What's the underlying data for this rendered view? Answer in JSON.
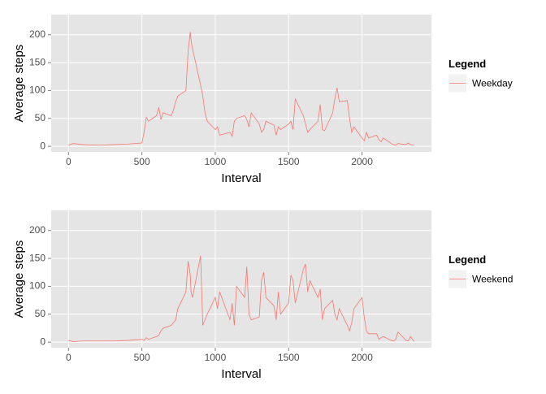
{
  "chart_data": [
    {
      "type": "line",
      "x_label": "Interval",
      "y_label": "Average steps",
      "legend_title": "Legend",
      "legend": "right",
      "grid": true,
      "xlim": [
        -118,
        2473
      ],
      "ylim": [
        -10,
        236
      ],
      "xticks": [
        0,
        500,
        1000,
        1500,
        2000
      ],
      "yticks": [
        0,
        50,
        100,
        150,
        200
      ],
      "x": [
        0,
        30,
        100,
        200,
        300,
        400,
        500,
        515,
        530,
        545,
        600,
        615,
        630,
        645,
        700,
        715,
        730,
        745,
        800,
        815,
        830,
        835,
        845,
        900,
        915,
        930,
        945,
        1000,
        1015,
        1030,
        1100,
        1115,
        1130,
        1145,
        1200,
        1215,
        1230,
        1245,
        1300,
        1315,
        1330,
        1345,
        1400,
        1415,
        1430,
        1445,
        1500,
        1515,
        1530,
        1545,
        1600,
        1615,
        1630,
        1645,
        1700,
        1715,
        1730,
        1745,
        1800,
        1815,
        1830,
        1845,
        1900,
        1915,
        1930,
        1945,
        2000,
        2015,
        2030,
        2045,
        2100,
        2115,
        2130,
        2145,
        2200,
        2215,
        2230,
        2245,
        2300,
        2315,
        2330,
        2355
      ],
      "series": [
        {
          "name": "Weekday",
          "color": "#f8766d",
          "values": [
            2,
            5,
            3,
            2,
            3,
            4,
            6,
            25,
            52,
            45,
            55,
            70,
            48,
            60,
            55,
            65,
            80,
            90,
            100,
            170,
            205,
            190,
            175,
            110,
            90,
            60,
            45,
            30,
            35,
            20,
            25,
            18,
            45,
            50,
            55,
            48,
            35,
            60,
            40,
            25,
            30,
            45,
            38,
            20,
            35,
            30,
            40,
            45,
            30,
            85,
            55,
            40,
            25,
            30,
            45,
            75,
            30,
            28,
            60,
            85,
            105,
            80,
            82,
            50,
            25,
            35,
            15,
            10,
            25,
            15,
            20,
            12,
            8,
            15,
            5,
            3,
            2,
            5,
            3,
            6,
            3,
            2
          ]
        }
      ]
    },
    {
      "type": "line",
      "x_label": "Interval",
      "y_label": "Average steps",
      "legend_title": "Legend",
      "legend": "right",
      "grid": true,
      "xlim": [
        -118,
        2473
      ],
      "ylim": [
        -10,
        236
      ],
      "xticks": [
        0,
        500,
        1000,
        1500,
        2000
      ],
      "yticks": [
        0,
        50,
        100,
        150,
        200
      ],
      "x": [
        0,
        30,
        100,
        200,
        300,
        400,
        500,
        515,
        530,
        545,
        600,
        615,
        630,
        645,
        700,
        715,
        730,
        745,
        800,
        815,
        830,
        835,
        845,
        900,
        915,
        930,
        945,
        1000,
        1015,
        1030,
        1100,
        1115,
        1130,
        1145,
        1200,
        1215,
        1230,
        1245,
        1300,
        1315,
        1330,
        1345,
        1400,
        1415,
        1430,
        1445,
        1500,
        1515,
        1530,
        1545,
        1600,
        1615,
        1630,
        1645,
        1700,
        1715,
        1730,
        1745,
        1800,
        1815,
        1830,
        1845,
        1900,
        1915,
        1930,
        1945,
        2000,
        2015,
        2030,
        2045,
        2100,
        2115,
        2130,
        2145,
        2200,
        2215,
        2230,
        2245,
        2300,
        2315,
        2330,
        2355
      ],
      "series": [
        {
          "name": "Weekend",
          "color": "#f8766d",
          "values": [
            3,
            1,
            2,
            2,
            2,
            3,
            5,
            3,
            8,
            5,
            10,
            12,
            20,
            25,
            30,
            35,
            40,
            60,
            90,
            145,
            120,
            90,
            80,
            155,
            30,
            40,
            50,
            80,
            60,
            90,
            40,
            70,
            30,
            100,
            80,
            135,
            50,
            40,
            45,
            110,
            125,
            80,
            65,
            40,
            90,
            50,
            70,
            120,
            110,
            70,
            130,
            140,
            90,
            110,
            80,
            95,
            40,
            60,
            75,
            50,
            40,
            60,
            30,
            20,
            35,
            60,
            80,
            45,
            20,
            15,
            15,
            5,
            8,
            10,
            3,
            2,
            5,
            18,
            3,
            2,
            10,
            1
          ]
        }
      ]
    }
  ]
}
